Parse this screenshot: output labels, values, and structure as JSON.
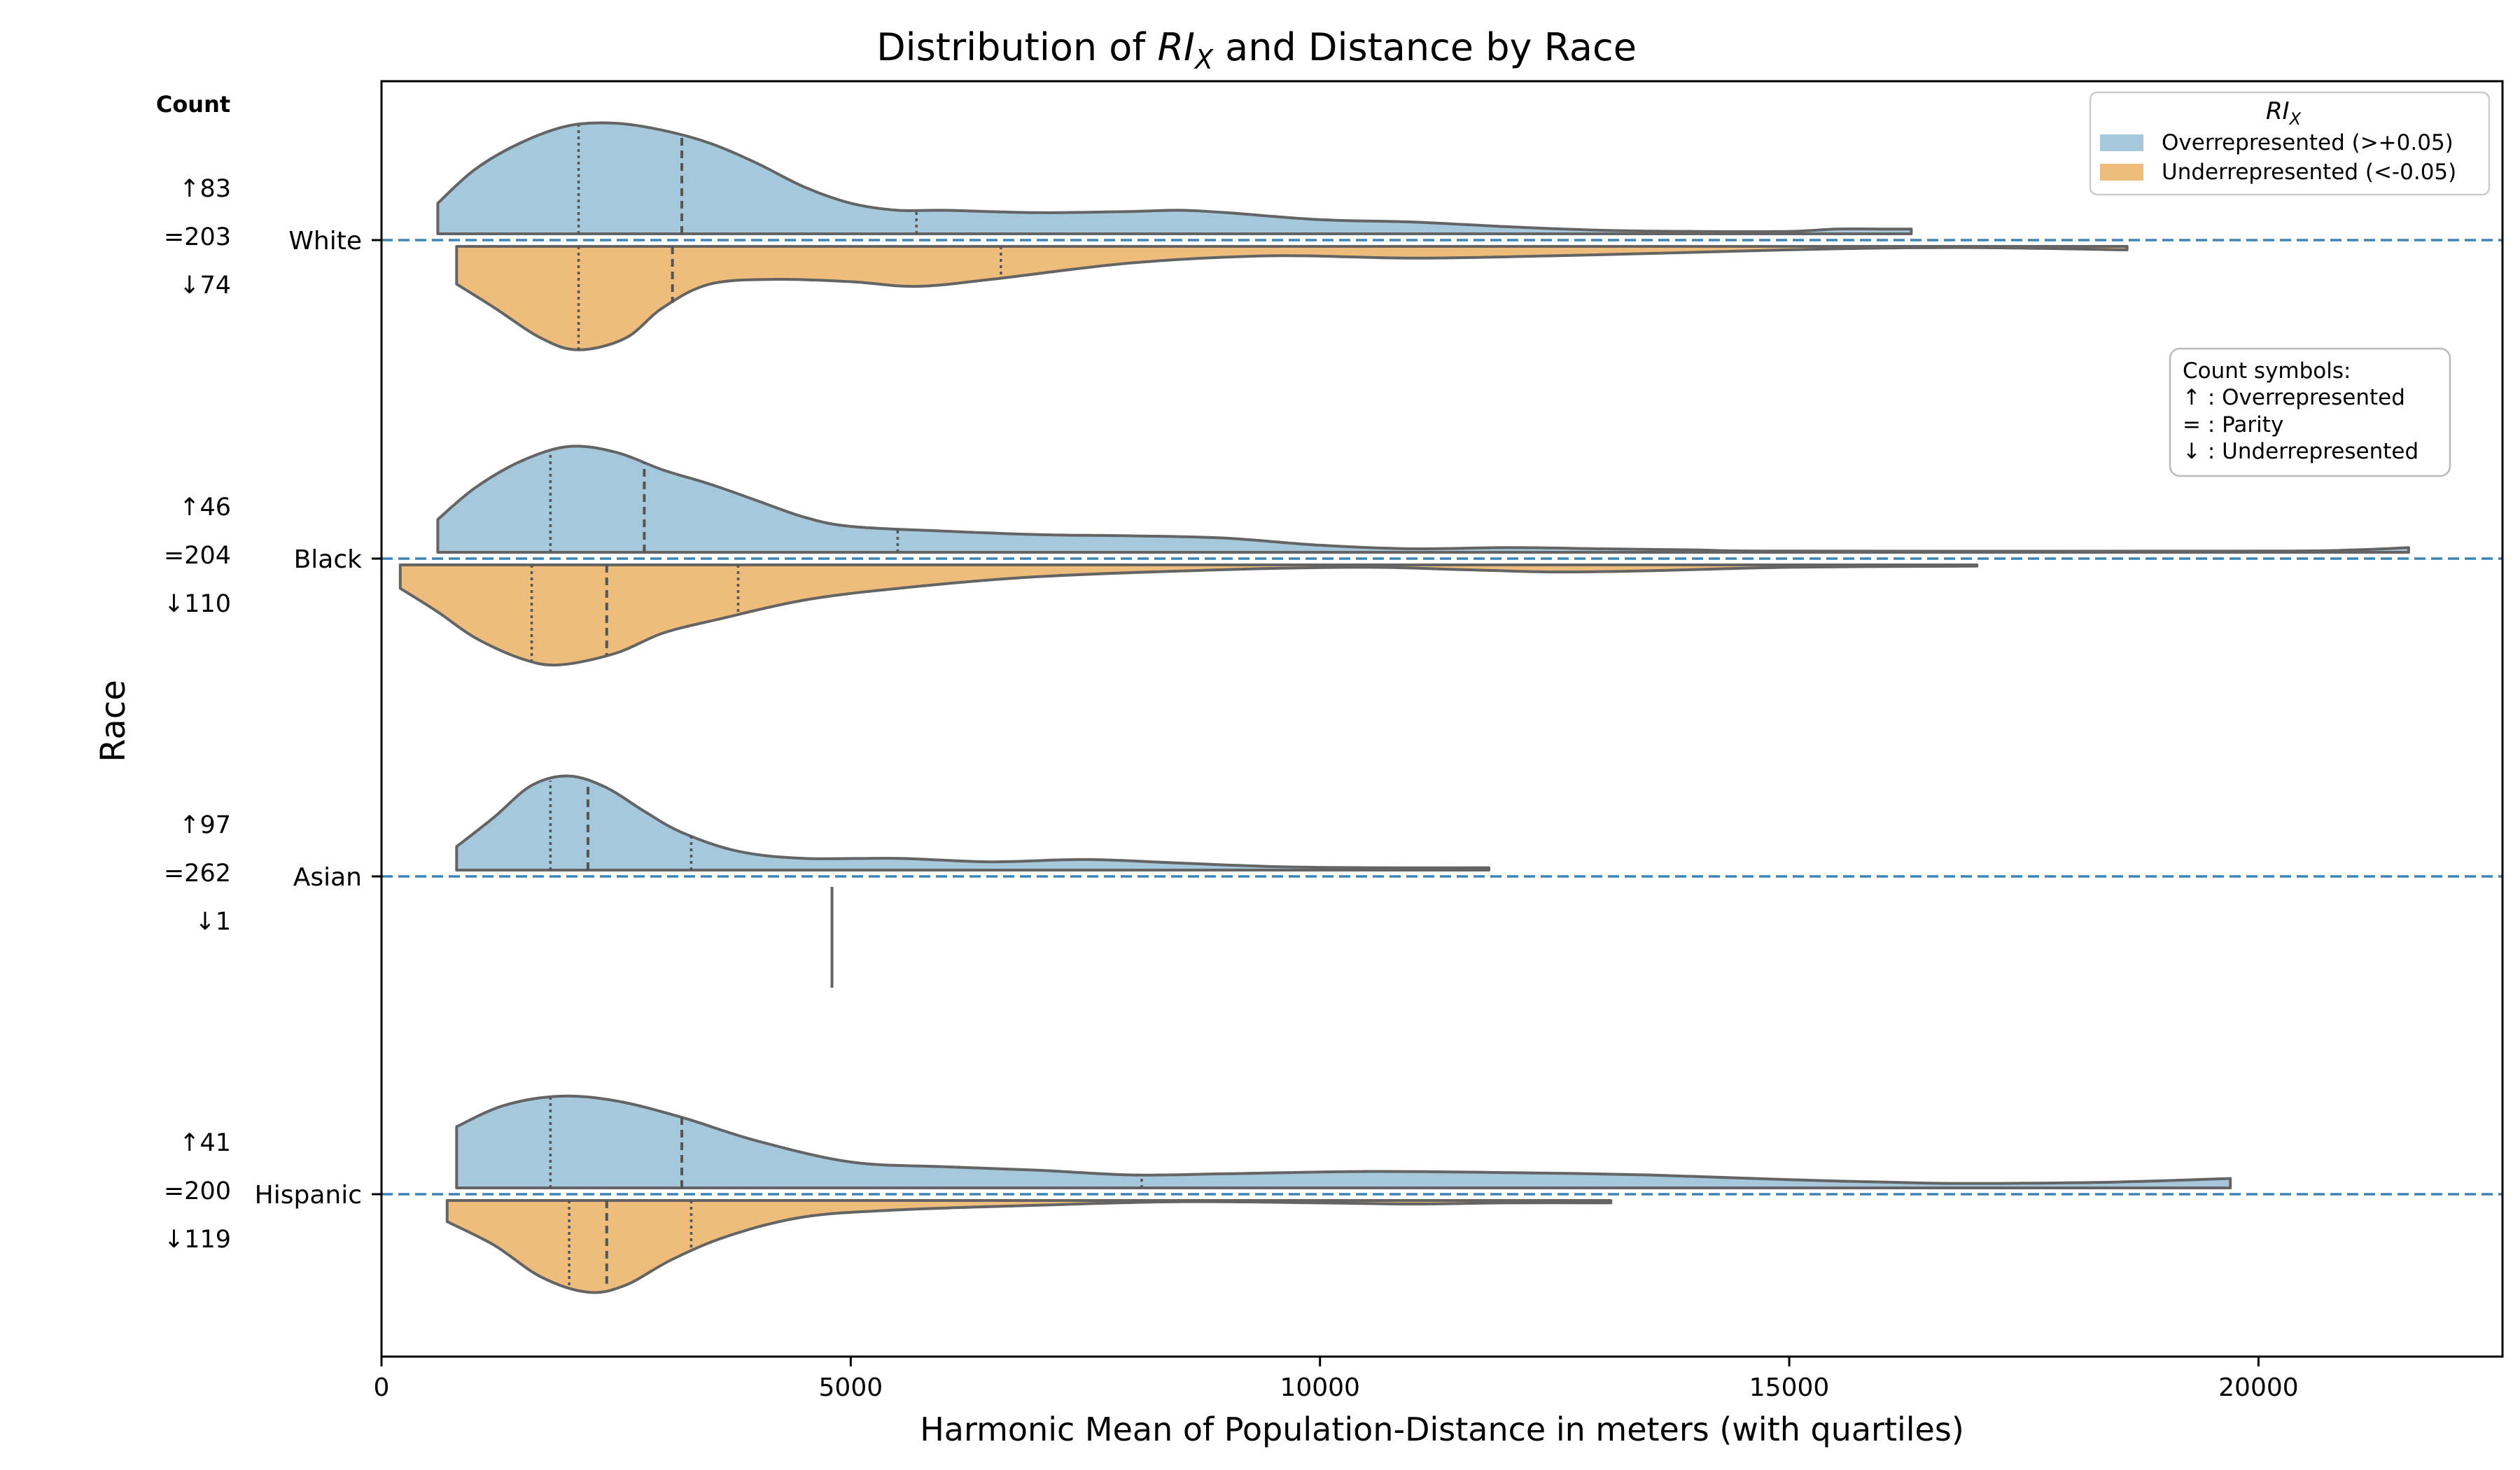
{
  "chart_data": {
    "type": "violin",
    "title": "Distribution of RIX and Distance by Race",
    "title_parts": {
      "pre": "Distribution of ",
      "var": "RI",
      "sub": "X",
      "post": " and Distance by Race"
    },
    "xlabel": "Harmonic Mean of Population-Distance in meters (with quartiles)",
    "ylabel": "Race",
    "xlim": [
      0,
      22600
    ],
    "x_ticks": [
      "0",
      "5000",
      "10000",
      "15000",
      "20000"
    ],
    "x_tick_values": [
      0,
      5000,
      10000,
      15000,
      20000
    ],
    "count_header": "Count",
    "legend": {
      "title_var": "RI",
      "title_sub": "X",
      "placement": "top-right",
      "entries": [
        {
          "label": "Overrepresented (>+0.05)",
          "color": "#a6c8dd"
        },
        {
          "label": "Underrepresented (<-0.05)",
          "color": "#efbd7b"
        }
      ]
    },
    "symbol_box": {
      "lines": [
        "Count symbols:",
        "↑ : Overrepresented",
        "= : Parity",
        "↓ : Underrepresented"
      ]
    },
    "colors": {
      "over": "#a6c8dd",
      "under": "#efbd7b",
      "outline": "#646464",
      "parity_line": "#3d85b8"
    },
    "categories": [
      {
        "name": "White",
        "counts": {
          "up": "↑83",
          "eq": "=203",
          "down": "↓74"
        },
        "over": {
          "min": 600,
          "max": 16300,
          "quartiles": [
            2100,
            3200,
            5700
          ],
          "density": [
            [
              600,
              0.26
            ],
            [
              1000,
              0.55
            ],
            [
              1500,
              0.78
            ],
            [
              2000,
              0.92
            ],
            [
              2500,
              0.94
            ],
            [
              3000,
              0.88
            ],
            [
              3500,
              0.77
            ],
            [
              4000,
              0.6
            ],
            [
              4500,
              0.4
            ],
            [
              5000,
              0.26
            ],
            [
              5500,
              0.2
            ],
            [
              6000,
              0.2
            ],
            [
              7000,
              0.18
            ],
            [
              8000,
              0.19
            ],
            [
              8500,
              0.2
            ],
            [
              9000,
              0.18
            ],
            [
              10000,
              0.12
            ],
            [
              11000,
              0.1
            ],
            [
              12000,
              0.06
            ],
            [
              13000,
              0.03
            ],
            [
              14000,
              0.02
            ],
            [
              15000,
              0.02
            ],
            [
              15500,
              0.04
            ],
            [
              16000,
              0.04
            ],
            [
              16300,
              0.04
            ]
          ]
        },
        "under": {
          "min": 800,
          "max": 18600,
          "quartiles": [
            2100,
            3100,
            6600
          ],
          "density": [
            [
              800,
              0.32
            ],
            [
              1200,
              0.52
            ],
            [
              1700,
              0.78
            ],
            [
              2100,
              0.88
            ],
            [
              2600,
              0.78
            ],
            [
              3000,
              0.52
            ],
            [
              3500,
              0.32
            ],
            [
              4200,
              0.28
            ],
            [
              5000,
              0.3
            ],
            [
              5700,
              0.34
            ],
            [
              6500,
              0.28
            ],
            [
              8000,
              0.14
            ],
            [
              9500,
              0.08
            ],
            [
              11000,
              0.1
            ],
            [
              12500,
              0.08
            ],
            [
              14000,
              0.05
            ],
            [
              15500,
              0.02
            ],
            [
              17000,
              0.01
            ],
            [
              18600,
              0.03
            ]
          ]
        }
      },
      {
        "name": "Black",
        "counts": {
          "up": "↑46",
          "eq": "=204",
          "down": "↓110"
        },
        "over": {
          "min": 600,
          "max": 21600,
          "quartiles": [
            1800,
            2800,
            5500
          ],
          "density": [
            [
              600,
              0.28
            ],
            [
              1000,
              0.55
            ],
            [
              1500,
              0.78
            ],
            [
              2000,
              0.9
            ],
            [
              2500,
              0.85
            ],
            [
              3000,
              0.7
            ],
            [
              3500,
              0.58
            ],
            [
              4000,
              0.44
            ],
            [
              4500,
              0.3
            ],
            [
              5000,
              0.22
            ],
            [
              6000,
              0.18
            ],
            [
              7000,
              0.15
            ],
            [
              8000,
              0.14
            ],
            [
              9000,
              0.12
            ],
            [
              10000,
              0.06
            ],
            [
              11000,
              0.03
            ],
            [
              12000,
              0.04
            ],
            [
              13000,
              0.03
            ],
            [
              14000,
              0.02
            ],
            [
              15000,
              0.01
            ],
            [
              20000,
              0.01
            ],
            [
              21000,
              0.02
            ],
            [
              21600,
              0.04
            ]
          ]
        },
        "under": {
          "min": 200,
          "max": 17000,
          "quartiles": [
            1600,
            2400,
            3800
          ],
          "density": [
            [
              200,
              0.2
            ],
            [
              600,
              0.4
            ],
            [
              1000,
              0.62
            ],
            [
              1500,
              0.8
            ],
            [
              1900,
              0.85
            ],
            [
              2500,
              0.75
            ],
            [
              3000,
              0.58
            ],
            [
              3600,
              0.46
            ],
            [
              4500,
              0.3
            ],
            [
              5500,
              0.2
            ],
            [
              7000,
              0.1
            ],
            [
              9000,
              0.04
            ],
            [
              10500,
              0.02
            ],
            [
              11500,
              0.04
            ],
            [
              12500,
              0.06
            ],
            [
              13500,
              0.05
            ],
            [
              15000,
              0.02
            ],
            [
              17000,
              0.01
            ]
          ]
        }
      },
      {
        "name": "Asian",
        "counts": {
          "up": "↑97",
          "eq": "=262",
          "down": "↓1"
        },
        "over": {
          "min": 800,
          "max": 11800,
          "quartiles": [
            1800,
            2200,
            3300
          ],
          "density": [
            [
              800,
              0.2
            ],
            [
              1200,
              0.45
            ],
            [
              1600,
              0.72
            ],
            [
              2000,
              0.8
            ],
            [
              2400,
              0.7
            ],
            [
              2800,
              0.5
            ],
            [
              3200,
              0.32
            ],
            [
              3800,
              0.16
            ],
            [
              4500,
              0.1
            ],
            [
              5500,
              0.1
            ],
            [
              6500,
              0.07
            ],
            [
              7500,
              0.09
            ],
            [
              8500,
              0.06
            ],
            [
              9500,
              0.03
            ],
            [
              10500,
              0.02
            ],
            [
              11800,
              0.02
            ]
          ]
        },
        "under": {
          "min": 4800,
          "max": 4800,
          "quartiles": [],
          "density": [],
          "single_value": 4800
        }
      },
      {
        "name": "Hispanic",
        "counts": {
          "up": "↑41",
          "eq": "=200",
          "down": "↓119"
        },
        "over": {
          "min": 800,
          "max": 19700,
          "quartiles": [
            1800,
            3200,
            8100
          ],
          "density": [
            [
              800,
              0.52
            ],
            [
              1300,
              0.7
            ],
            [
              1900,
              0.78
            ],
            [
              2500,
              0.74
            ],
            [
              3200,
              0.6
            ],
            [
              4000,
              0.4
            ],
            [
              5000,
              0.22
            ],
            [
              6000,
              0.18
            ],
            [
              7000,
              0.15
            ],
            [
              8000,
              0.11
            ],
            [
              9000,
              0.12
            ],
            [
              10500,
              0.14
            ],
            [
              12000,
              0.13
            ],
            [
              13500,
              0.11
            ],
            [
              15000,
              0.07
            ],
            [
              16500,
              0.04
            ],
            [
              17500,
              0.04
            ],
            [
              18500,
              0.05
            ],
            [
              19700,
              0.08
            ]
          ]
        },
        "under": {
          "min": 700,
          "max": 13100,
          "quartiles": [
            2000,
            2400,
            3300
          ],
          "density": [
            [
              700,
              0.18
            ],
            [
              1200,
              0.38
            ],
            [
              1700,
              0.65
            ],
            [
              2200,
              0.78
            ],
            [
              2600,
              0.72
            ],
            [
              3100,
              0.5
            ],
            [
              3700,
              0.3
            ],
            [
              4500,
              0.14
            ],
            [
              5500,
              0.08
            ],
            [
              7000,
              0.04
            ],
            [
              8500,
              0.01
            ],
            [
              10000,
              0.02
            ],
            [
              11000,
              0.03
            ],
            [
              12000,
              0.02
            ],
            [
              13100,
              0.02
            ]
          ]
        }
      }
    ]
  }
}
